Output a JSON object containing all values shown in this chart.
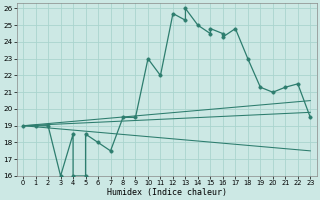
{
  "xlabel": "Humidex (Indice chaleur)",
  "bg_color": "#cce8e4",
  "grid_color": "#aad4ce",
  "line_color": "#2d7d6e",
  "xlim": [
    -0.5,
    23.5
  ],
  "ylim": [
    16,
    26.3
  ],
  "yticks": [
    16,
    17,
    18,
    19,
    20,
    21,
    22,
    23,
    24,
    25,
    26
  ],
  "xticks": [
    0,
    1,
    2,
    3,
    4,
    5,
    6,
    7,
    8,
    9,
    10,
    11,
    12,
    13,
    14,
    15,
    16,
    17,
    18,
    19,
    20,
    21,
    22,
    23
  ],
  "main_line_x": [
    0,
    1,
    2,
    3,
    4,
    4,
    5,
    5,
    6,
    7,
    8,
    9,
    10,
    11,
    12,
    13,
    13,
    14,
    15,
    15,
    16,
    16,
    17,
    18,
    19,
    20,
    21,
    22,
    23
  ],
  "main_line_y": [
    19,
    19,
    19,
    16,
    18.5,
    16,
    16,
    18.5,
    18,
    17.5,
    19.5,
    19.5,
    23,
    22,
    25.7,
    25.3,
    26,
    25,
    24.5,
    24.8,
    24.5,
    24.3,
    24.8,
    23,
    21.3,
    21,
    21.3,
    21.5,
    19.5
  ],
  "upper_line_x": [
    0,
    23
  ],
  "upper_line_y": [
    19,
    20.5
  ],
  "mid_line_x": [
    0,
    23
  ],
  "mid_line_y": [
    19,
    19.8
  ],
  "lower_line_x": [
    0,
    23
  ],
  "lower_line_y": [
    19,
    17.5
  ],
  "marker_size": 2.5,
  "linewidth": 0.9
}
